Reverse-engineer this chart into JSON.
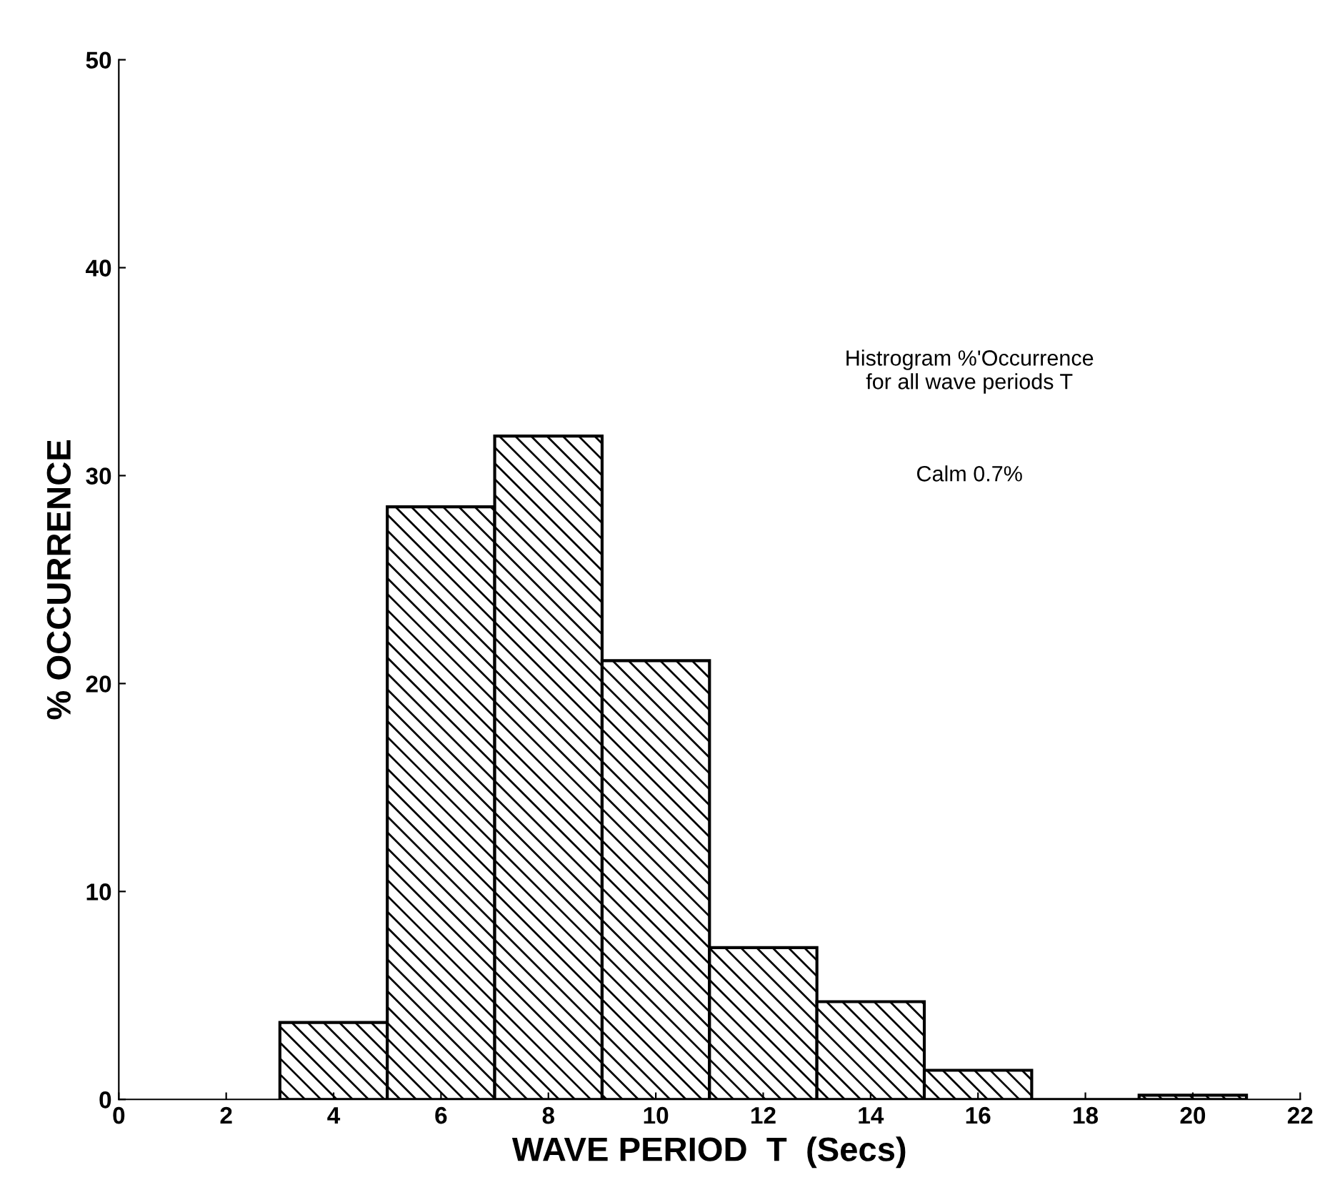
{
  "chart_data": {
    "type": "histogram",
    "xlabel": "WAVE PERIOD  T  (Secs)",
    "ylabel": "% OCCURRENCE",
    "bins": [
      3,
      5,
      7,
      9,
      11,
      13,
      15,
      17,
      19,
      21
    ],
    "values": [
      3.7,
      28.5,
      31.9,
      21.1,
      7.3,
      4.7,
      1.4,
      0,
      0.2
    ],
    "color": "#000000",
    "xlim": [
      0,
      22
    ],
    "xticks": [
      0,
      2,
      4,
      6,
      8,
      10,
      12,
      14,
      16,
      18,
      20,
      22
    ],
    "ylim": [
      0,
      50
    ],
    "yticks": [
      0,
      10,
      20,
      30,
      40,
      50
    ],
    "annotations": [
      "Histrogram %'Occurrence\nfor all wave periods T",
      "Calm 0.7%"
    ],
    "grid": false
  }
}
